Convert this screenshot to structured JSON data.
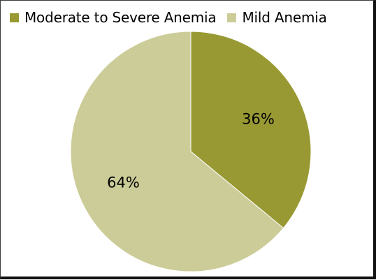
{
  "chart_data": {
    "type": "pie",
    "title": "",
    "legend_position": "top",
    "start_angle_deg": 0,
    "direction": "clockwise",
    "slices": [
      {
        "label": "Moderate to Severe Anemia",
        "value": 36,
        "display": "36%",
        "color": "#999933"
      },
      {
        "label": "Mild Anemia",
        "value": 64,
        "display": "64%",
        "color": "#cccc99"
      }
    ]
  }
}
